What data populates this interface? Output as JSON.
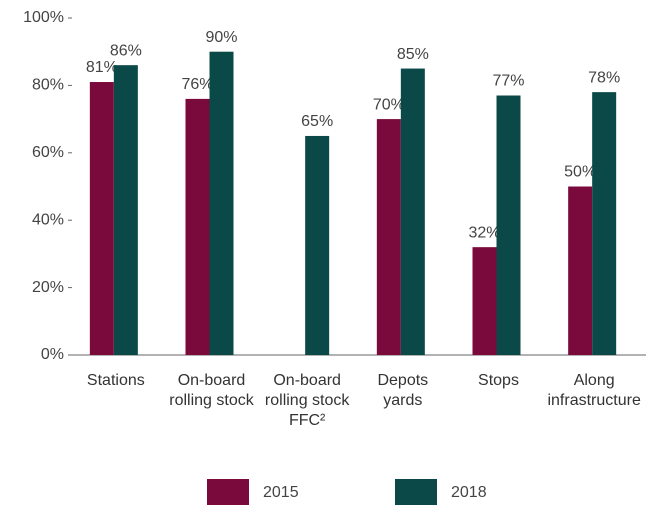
{
  "chart_data": {
    "type": "bar",
    "categories": [
      "Stations",
      "On-board\nrolling stock",
      "On-board\nrolling stock\nFFC²",
      "Depots\nyards",
      "Stops",
      "Along\ninfrastructure"
    ],
    "series": [
      {
        "name": "2015",
        "color": "#7a0a3c",
        "values": [
          81,
          76,
          null,
          70,
          32,
          50
        ],
        "value_labels": [
          "81%",
          "76%",
          null,
          "70%",
          "32%",
          "50%"
        ]
      },
      {
        "name": "2018",
        "color": "#0b4848",
        "values": [
          86,
          90,
          65,
          85,
          77,
          78
        ],
        "value_labels": [
          "86%",
          "90%",
          "65%",
          "85%",
          "77%",
          "78%"
        ]
      }
    ],
    "ylim": [
      0,
      100
    ],
    "yticks": [
      {
        "value": 0,
        "label": "0%"
      },
      {
        "value": 20,
        "label": "20%"
      },
      {
        "value": 40,
        "label": "40%"
      },
      {
        "value": 60,
        "label": "60%"
      },
      {
        "value": 80,
        "label": "80%"
      },
      {
        "value": 100,
        "label": "100%"
      }
    ]
  }
}
